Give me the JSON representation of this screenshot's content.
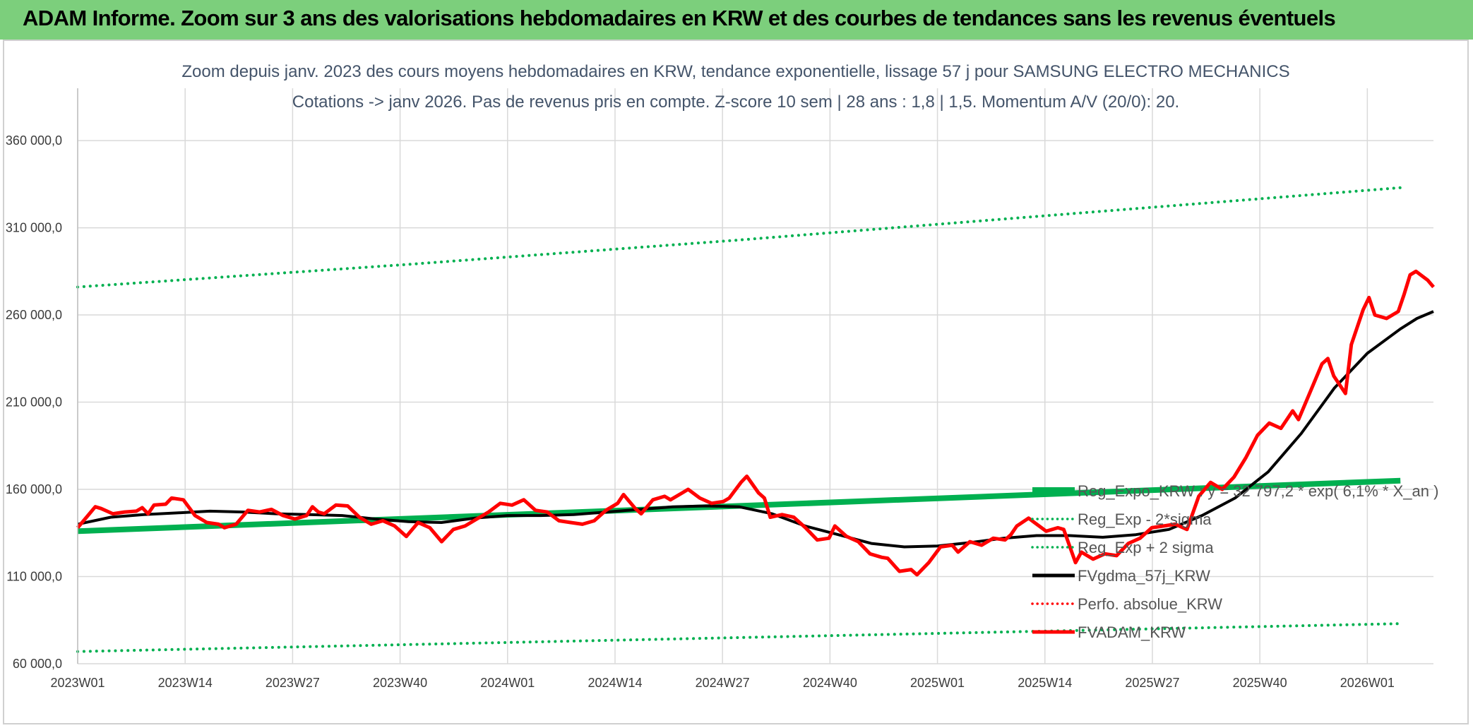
{
  "header": {
    "title": "ADAM Informe. Zoom sur 3 ans des valorisations hebdomadaires en KRW et des courbes de tendances sans les revenus éventuels",
    "background": "#7ccf7c"
  },
  "chart_data": {
    "type": "line",
    "title": "Zoom depuis janv. 2023 des cours moyens hebdomadaires en KRW, tendance exponentielle, lissage 57 j pour SAMSUNG ELECTRO MECHANICS",
    "subtitle": "Cotations -> janv 2026. Pas de revenus pris en compte. Z-score 10 sem | 28 ans : 1,8 | 1,5. Momentum A/V (20/0): 20.",
    "xlabel": "",
    "ylabel": "",
    "ylim": [
      60000,
      390000
    ],
    "y_ticks": [
      "60 000,0",
      "110 000,0",
      "160 000,0",
      "210 000,0",
      "260 000,0",
      "310 000,0",
      "360 000,0"
    ],
    "x_ticks": [
      "2023W01",
      "2023W14",
      "2023W27",
      "2023W40",
      "2024W01",
      "2024W14",
      "2024W27",
      "2024W40",
      "2025W01",
      "2025W14",
      "2025W27",
      "2025W40",
      "2026W01"
    ],
    "x_range_weeks": [
      0,
      160
    ],
    "grid": true,
    "legend_position": "right",
    "series": [
      {
        "name": "Reg_Expo_KRW : y = 32 797,2 * exp( 6,1% * X_an )",
        "color": "#00b050",
        "style": "solid",
        "width": 8,
        "points": [
          [
            0,
            136000
          ],
          [
            160,
            165000
          ]
        ]
      },
      {
        "name": "Reg_Exp - 2*sigma",
        "color": "#00b050",
        "style": "dotted",
        "width": 4,
        "points": [
          [
            0,
            67000
          ],
          [
            160,
            83000
          ]
        ]
      },
      {
        "name": "Reg_Exp + 2 sigma",
        "color": "#00b050",
        "style": "dotted",
        "width": 4,
        "points": [
          [
            0,
            276000
          ],
          [
            40,
            289000
          ],
          [
            80,
            303000
          ],
          [
            120,
            318000
          ],
          [
            160,
            333000
          ]
        ]
      },
      {
        "name": "FVgdma_57j_KRW",
        "color": "#000000",
        "style": "solid",
        "width": 4,
        "points": [
          [
            0,
            140000
          ],
          [
            4,
            144000
          ],
          [
            8,
            145500
          ],
          [
            12,
            146500
          ],
          [
            16,
            147500
          ],
          [
            20,
            147000
          ],
          [
            24,
            146000
          ],
          [
            28,
            145500
          ],
          [
            32,
            145000
          ],
          [
            36,
            143000
          ],
          [
            40,
            141500
          ],
          [
            44,
            141000
          ],
          [
            48,
            143500
          ],
          [
            52,
            145000
          ],
          [
            56,
            145000
          ],
          [
            60,
            145500
          ],
          [
            64,
            147000
          ],
          [
            68,
            148500
          ],
          [
            72,
            150000
          ],
          [
            76,
            150500
          ],
          [
            80,
            150000
          ],
          [
            84,
            146000
          ],
          [
            88,
            139000
          ],
          [
            92,
            134000
          ],
          [
            96,
            129000
          ],
          [
            100,
            127000
          ],
          [
            104,
            127500
          ],
          [
            108,
            129500
          ],
          [
            112,
            132000
          ],
          [
            116,
            133500
          ],
          [
            120,
            133500
          ],
          [
            124,
            132500
          ],
          [
            128,
            134000
          ],
          [
            132,
            137000
          ],
          [
            136,
            145000
          ],
          [
            140,
            155000
          ],
          [
            144,
            170000
          ],
          [
            148,
            192000
          ],
          [
            152,
            218000
          ],
          [
            156,
            238000
          ],
          [
            160,
            252000
          ],
          [
            162,
            258000
          ],
          [
            164,
            262000
          ]
        ]
      },
      {
        "name": "Perfo. absolue_KRW",
        "color": "#ff0000",
        "style": "dotted",
        "width": 3,
        "points": []
      },
      {
        "name": "FVADAM_KRW",
        "color": "#ff0000",
        "style": "solid",
        "width": 5,
        "points": [
          [
            0,
            138000
          ],
          [
            2,
            146000
          ],
          [
            3,
            150000
          ],
          [
            4,
            149000
          ],
          [
            6,
            146000
          ],
          [
            8,
            147000
          ],
          [
            10,
            147500
          ],
          [
            11,
            149500
          ],
          [
            12,
            146000
          ],
          [
            13,
            151000
          ],
          [
            15,
            151500
          ],
          [
            16,
            155000
          ],
          [
            18,
            154000
          ],
          [
            20,
            145000
          ],
          [
            22,
            141000
          ],
          [
            24,
            140000
          ],
          [
            25,
            138000
          ],
          [
            27,
            140000
          ],
          [
            29,
            148000
          ],
          [
            31,
            147000
          ],
          [
            33,
            148500
          ],
          [
            35,
            145000
          ],
          [
            37,
            143000
          ],
          [
            39,
            145000
          ],
          [
            40,
            150000
          ],
          [
            41,
            147000
          ],
          [
            42,
            146000
          ],
          [
            44,
            151000
          ],
          [
            46,
            150500
          ],
          [
            48,
            144000
          ],
          [
            50,
            140000
          ],
          [
            52,
            142000
          ],
          [
            54,
            139000
          ],
          [
            56,
            133000
          ],
          [
            58,
            141000
          ],
          [
            60,
            138000
          ],
          [
            62,
            130000
          ],
          [
            64,
            137000
          ],
          [
            66,
            139000
          ],
          [
            68,
            143000
          ],
          [
            70,
            147000
          ],
          [
            72,
            152000
          ],
          [
            74,
            151000
          ],
          [
            76,
            154000
          ],
          [
            78,
            148000
          ],
          [
            80,
            147000
          ],
          [
            82,
            142000
          ],
          [
            84,
            141000
          ],
          [
            86,
            140000
          ],
          [
            88,
            142000
          ],
          [
            90,
            148000
          ],
          [
            92,
            152000
          ],
          [
            93,
            157000
          ],
          [
            95,
            149000
          ],
          [
            96,
            146000
          ],
          [
            98,
            154000
          ],
          [
            100,
            156000
          ],
          [
            101,
            154000
          ],
          [
            103,
            158000
          ],
          [
            104,
            160000
          ],
          [
            106,
            155000
          ],
          [
            108,
            152000
          ],
          [
            110,
            153000
          ],
          [
            111,
            155000
          ],
          [
            113,
            164000
          ],
          [
            114,
            167500
          ],
          [
            116,
            158000
          ],
          [
            117,
            155000
          ],
          [
            118,
            144000
          ],
          [
            120,
            145500
          ],
          [
            122,
            144000
          ],
          [
            124,
            138000
          ],
          [
            126,
            131000
          ],
          [
            128,
            132000
          ],
          [
            129,
            139000
          ],
          [
            131,
            133000
          ],
          [
            133,
            130000
          ],
          [
            135,
            123000
          ],
          [
            137,
            121000
          ],
          [
            138,
            120500
          ],
          [
            140,
            113000
          ],
          [
            142,
            114000
          ],
          [
            143,
            111000
          ],
          [
            145,
            118000
          ],
          [
            147,
            127000
          ],
          [
            149,
            128000
          ],
          [
            150,
            124000
          ],
          [
            152,
            130000
          ],
          [
            154,
            128000
          ],
          [
            156,
            132000
          ],
          [
            158,
            131000
          ],
          [
            159,
            134000
          ],
          [
            160,
            139000
          ],
          [
            162,
            143500
          ],
          [
            163,
            141000
          ],
          [
            165,
            136000
          ],
          [
            167,
            138000
          ],
          [
            168,
            137000
          ],
          [
            170,
            118000
          ],
          [
            171,
            124000
          ],
          [
            173,
            120000
          ],
          [
            175,
            123000
          ],
          [
            177,
            122000
          ],
          [
            179,
            129000
          ],
          [
            181,
            132000
          ],
          [
            183,
            138000
          ],
          [
            185,
            139000
          ],
          [
            187,
            140000
          ],
          [
            189,
            137000
          ],
          [
            191,
            156000
          ],
          [
            193,
            164000
          ],
          [
            195,
            160000
          ],
          [
            197,
            167000
          ],
          [
            199,
            178000
          ],
          [
            201,
            191000
          ],
          [
            203,
            198000
          ],
          [
            205,
            195000
          ],
          [
            207,
            205000
          ],
          [
            208,
            200000
          ],
          [
            210,
            216000
          ],
          [
            212,
            232000
          ],
          [
            213,
            235000
          ],
          [
            214,
            225000
          ],
          [
            216,
            215000
          ],
          [
            217,
            243000
          ],
          [
            219,
            263000
          ],
          [
            220,
            270000
          ],
          [
            221,
            260000
          ],
          [
            223,
            258000
          ],
          [
            225,
            262000
          ],
          [
            226,
            272000
          ],
          [
            227,
            283000
          ],
          [
            228,
            285000
          ],
          [
            230,
            280000
          ],
          [
            231,
            276000
          ]
        ]
      }
    ]
  }
}
